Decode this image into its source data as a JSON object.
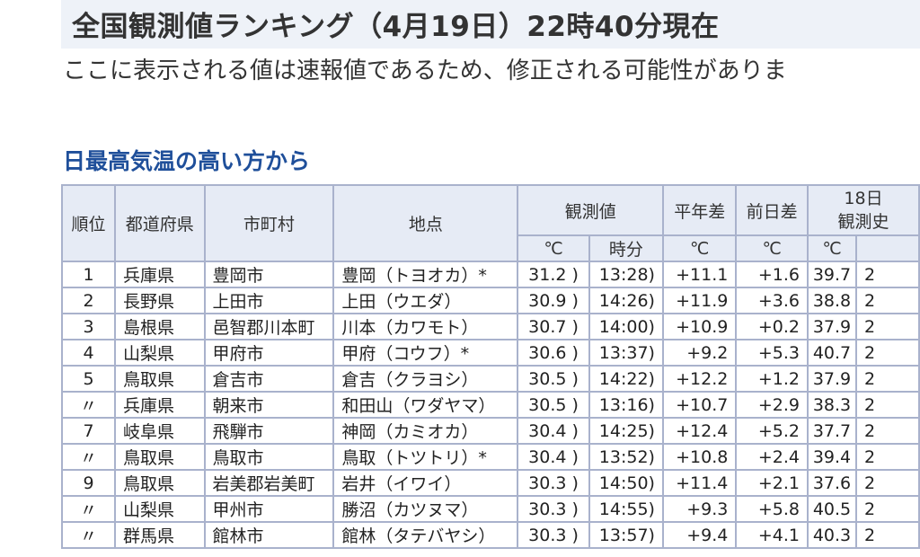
{
  "header": {
    "title": "全国観測値ランキング（4月19日）22時40分現在",
    "notice": "ここに表示される値は速報値であるため、修正される可能性がありま"
  },
  "section": {
    "heading": "日最高気温の高い方から"
  },
  "table": {
    "headers": {
      "rank": "順位",
      "prefecture": "都道府県",
      "city": "市町村",
      "station": "地点",
      "observed": "観測値",
      "normal_diff": "平年差",
      "prev_diff": "前日差",
      "history_line1": "18日",
      "history_line2": "観測史",
      "unit_c": "℃",
      "unit_time": "時分",
      "unit_normal": "℃",
      "unit_prev": "℃",
      "unit_hist": "℃"
    },
    "rows": [
      {
        "rank": "1",
        "pref": "兵庫県",
        "city": "豊岡市",
        "station": "豊岡（トヨオカ）*",
        "temp": "31.2 )",
        "time": "13:28)",
        "normal": "+11.1",
        "prev": "+1.6",
        "hist": "39.7",
        "hist2": "2"
      },
      {
        "rank": "2",
        "pref": "長野県",
        "city": "上田市",
        "station": "上田（ウエダ）",
        "temp": "30.9 )",
        "time": "14:26)",
        "normal": "+11.9",
        "prev": "+3.6",
        "hist": "38.8",
        "hist2": "2"
      },
      {
        "rank": "3",
        "pref": "島根県",
        "city": "邑智郡川本町",
        "station": "川本（カワモト）",
        "temp": "30.7 )",
        "time": "14:00)",
        "normal": "+10.9",
        "prev": "+0.2",
        "hist": "37.9",
        "hist2": "2"
      },
      {
        "rank": "4",
        "pref": "山梨県",
        "city": "甲府市",
        "station": "甲府（コウフ）*",
        "temp": "30.6 )",
        "time": "13:37)",
        "normal": "+9.2",
        "prev": "+5.3",
        "hist": "40.7",
        "hist2": "2"
      },
      {
        "rank": "5",
        "pref": "鳥取県",
        "city": "倉吉市",
        "station": "倉吉（クラヨシ）",
        "temp": "30.5 )",
        "time": "14:22)",
        "normal": "+12.2",
        "prev": "+1.2",
        "hist": "37.9",
        "hist2": "2"
      },
      {
        "rank": "〃",
        "pref": "兵庫県",
        "city": "朝来市",
        "station": "和田山（ワダヤマ）",
        "temp": "30.5 )",
        "time": "13:16)",
        "normal": "+10.7",
        "prev": "+2.9",
        "hist": "38.3",
        "hist2": "2"
      },
      {
        "rank": "7",
        "pref": "岐阜県",
        "city": "飛騨市",
        "station": "神岡（カミオカ）",
        "temp": "30.4 )",
        "time": "14:25)",
        "normal": "+12.4",
        "prev": "+5.2",
        "hist": "37.7",
        "hist2": "2"
      },
      {
        "rank": "〃",
        "pref": "鳥取県",
        "city": "鳥取市",
        "station": "鳥取（トツトリ）*",
        "temp": "30.4 )",
        "time": "13:52)",
        "normal": "+10.8",
        "prev": "+2.4",
        "hist": "39.4",
        "hist2": "2"
      },
      {
        "rank": "9",
        "pref": "鳥取県",
        "city": "岩美郡岩美町",
        "station": "岩井（イワイ）",
        "temp": "30.3 )",
        "time": "14:50)",
        "normal": "+11.4",
        "prev": "+2.1",
        "hist": "37.6",
        "hist2": "2"
      },
      {
        "rank": "〃",
        "pref": "山梨県",
        "city": "甲州市",
        "station": "勝沼（カツヌマ）",
        "temp": "30.3 )",
        "time": "14:55)",
        "normal": "+9.3",
        "prev": "+5.8",
        "hist": "40.5",
        "hist2": "2"
      },
      {
        "rank": "〃",
        "pref": "群馬県",
        "city": "館林市",
        "station": "館林（タテバヤシ）",
        "temp": "30.3 )",
        "time": "13:57)",
        "normal": "+9.4",
        "prev": "+4.1",
        "hist": "40.3",
        "hist2": "2"
      }
    ]
  }
}
